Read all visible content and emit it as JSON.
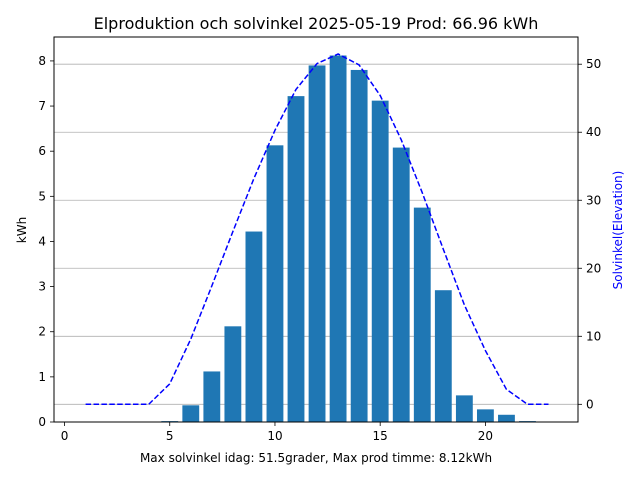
{
  "chart_data": {
    "type": "bar",
    "title": "Elproduktion och solvinkel 2025-05-19 Prod: 66.96 kWh",
    "xlabel": "Max solvinkel idag: 51.5grader, Max prod timme: 8.12kWh",
    "ylabel": "kWh",
    "y2label": "Solvinkel(Elevation)",
    "xlim": [
      -0.5,
      24.4
    ],
    "ylim": [
      0,
      8.53
    ],
    "y2lim": [
      -2.6,
      54.0
    ],
    "xticks": [
      0,
      5,
      10,
      15,
      20
    ],
    "yticks": [
      0,
      1,
      2,
      3,
      4,
      5,
      6,
      7,
      8
    ],
    "y2ticks": [
      0,
      10,
      20,
      30,
      40,
      50
    ],
    "grid": "right-axis horizontal lines",
    "bars": {
      "name": "kWh",
      "color": "#1f77b4",
      "x": [
        5,
        6,
        7,
        8,
        9,
        10,
        11,
        12,
        13,
        14,
        15,
        16,
        17,
        18,
        19,
        20,
        21,
        22
      ],
      "values": [
        0.02,
        0.37,
        1.12,
        2.12,
        4.22,
        6.13,
        7.22,
        7.9,
        8.12,
        7.8,
        7.12,
        6.08,
        4.75,
        2.92,
        0.59,
        0.28,
        0.16,
        0.02
      ]
    },
    "line": {
      "name": "Solvinkel(Elevation)",
      "color": "#0000ff",
      "style": "dashed",
      "x": [
        1,
        2,
        3,
        4,
        5,
        6,
        7,
        8,
        9,
        10,
        11,
        12,
        13,
        14,
        15,
        16,
        17,
        18,
        19,
        20,
        21,
        22,
        23
      ],
      "values": [
        0,
        0,
        0,
        0,
        3.0,
        9.6,
        17.4,
        25.4,
        33.2,
        40.3,
        46.3,
        50.1,
        51.5,
        49.9,
        45.4,
        38.9,
        31.1,
        22.8,
        14.6,
        7.9,
        2.2,
        0,
        0
      ]
    }
  }
}
